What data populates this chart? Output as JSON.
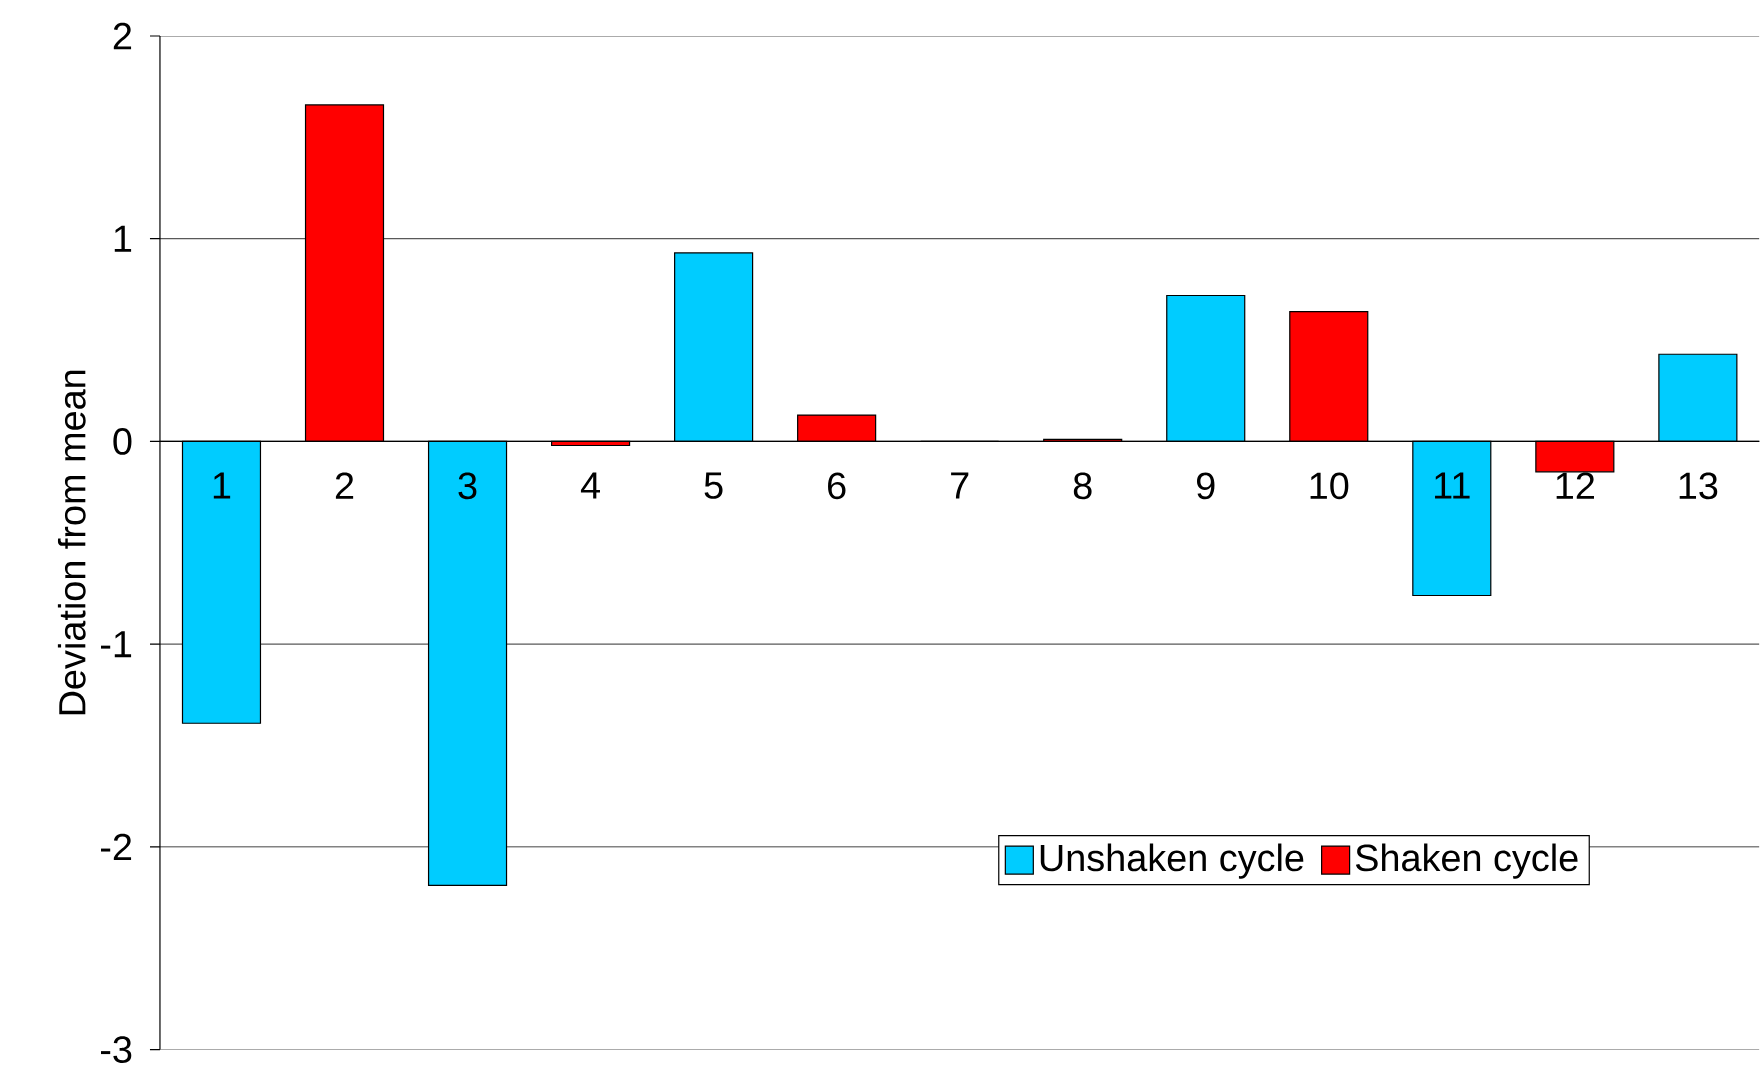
{
  "chart_data": {
    "type": "bar",
    "ylabel": "Deviation from mean",
    "categories": [
      "1",
      "2",
      "3",
      "4",
      "5",
      "6",
      "7",
      "8",
      "9",
      "10",
      "11",
      "12",
      "13"
    ],
    "series": [
      {
        "name": "Unshaken cycle",
        "color": "#00ccff",
        "values": [
          -1.39,
          null,
          -2.19,
          null,
          0.93,
          null,
          0,
          null,
          0.72,
          null,
          -0.76,
          null,
          0.43
        ]
      },
      {
        "name": "Shaken cycle",
        "color": "#ff0000",
        "values": [
          null,
          1.66,
          null,
          -0.02,
          null,
          0.13,
          null,
          0.01,
          null,
          0.64,
          null,
          -0.15,
          null
        ]
      }
    ],
    "ylim": [
      -3,
      2
    ],
    "yticks": [
      -3,
      -2,
      -1,
      0,
      1,
      2
    ],
    "grid": "y",
    "legend": "bottom right"
  }
}
